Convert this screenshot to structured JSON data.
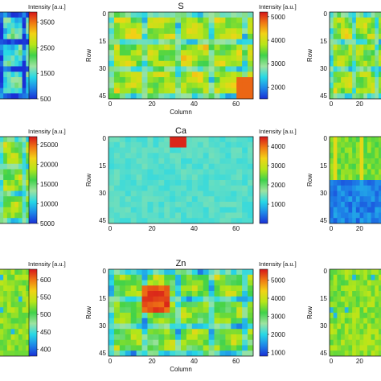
{
  "colormap": [
    "#1a2fd6",
    "#1e88e8",
    "#27d8e6",
    "#9ee3a0",
    "#3fd24b",
    "#b6e619",
    "#f2d316",
    "#f07a14",
    "#d6161b"
  ],
  "chart_data": [
    {
      "type": "heatmap",
      "element": "",
      "xlabel": "",
      "ylabel": "",
      "xticks": [],
      "yticks": [],
      "colorbar": {
        "label": "Intensity [a.u.]",
        "ticks": [
          "3500",
          "2500",
          "1500",
          "500"
        ],
        "range": [
          500,
          3900
        ]
      },
      "pattern": "grain",
      "base": 0.3
    },
    {
      "type": "heatmap",
      "element": "S",
      "xlabel": "Column",
      "ylabel": "Row",
      "xticks": [
        "0",
        "20",
        "40",
        "60"
      ],
      "yticks": [
        "0",
        "15",
        "30",
        "45"
      ],
      "colorbar": {
        "label": "Intensity [a.u.]",
        "ticks": [
          "5000",
          "4000",
          "3000",
          "2000"
        ],
        "range": [
          1500,
          5200
        ]
      },
      "pattern": "grain",
      "base": 0.62
    },
    {
      "type": "heatmap",
      "element": "",
      "xlabel": "",
      "ylabel": "Row",
      "xticks": [
        "0",
        "20"
      ],
      "yticks": [
        "0",
        "15",
        "30",
        "45"
      ],
      "colorbar": null,
      "pattern": "grain",
      "base": 0.6
    },
    {
      "type": "heatmap",
      "element": "",
      "xlabel": "",
      "ylabel": "",
      "xticks": [],
      "yticks": [],
      "colorbar": {
        "label": "Intensity [a.u.]",
        "ticks": [
          "25000",
          "20000",
          "15000",
          "10000",
          "5000"
        ],
        "range": [
          5000,
          27000
        ]
      },
      "pattern": "grain",
      "base": 0.58
    },
    {
      "type": "heatmap",
      "element": "Ca",
      "xlabel": "",
      "ylabel": "Row",
      "xticks": [
        "0",
        "20",
        "40",
        "60"
      ],
      "yticks": [
        "0",
        "15",
        "30",
        "45"
      ],
      "colorbar": {
        "label": "Intensity [a.u.]",
        "ticks": [
          "4000",
          "3000",
          "2000",
          "1000"
        ],
        "range": [
          0,
          4500
        ]
      },
      "pattern": "flat",
      "base": 0.3
    },
    {
      "type": "heatmap",
      "element": "",
      "xlabel": "",
      "ylabel": "Row",
      "xticks": [
        "0",
        "20"
      ],
      "yticks": [
        "0",
        "15",
        "30",
        "45"
      ],
      "colorbar": null,
      "pattern": "split",
      "base": 0.55
    },
    {
      "type": "heatmap",
      "element": "",
      "xlabel": "",
      "ylabel": "",
      "xticks": [],
      "yticks": [],
      "colorbar": {
        "label": "Intensity [a.u.]",
        "ticks": [
          "600",
          "550",
          "500",
          "450",
          "400"
        ],
        "range": [
          380,
          630
        ]
      },
      "pattern": "noise",
      "base": 0.58
    },
    {
      "type": "heatmap",
      "element": "Zn",
      "xlabel": "Column",
      "ylabel": "Row",
      "xticks": [
        "0",
        "20",
        "40",
        "60"
      ],
      "yticks": [
        "0",
        "15",
        "30",
        "45"
      ],
      "colorbar": {
        "label": "Intensity [a.u.]",
        "ticks": [
          "5000",
          "4000",
          "3000",
          "2000",
          "1000"
        ],
        "range": [
          800,
          5600
        ]
      },
      "pattern": "grain",
      "base": 0.55
    },
    {
      "type": "heatmap",
      "element": "",
      "xlabel": "",
      "ylabel": "Row",
      "xticks": [
        "0",
        "20"
      ],
      "yticks": [
        "0",
        "15",
        "30",
        "45"
      ],
      "colorbar": null,
      "pattern": "noise",
      "base": 0.58
    }
  ]
}
